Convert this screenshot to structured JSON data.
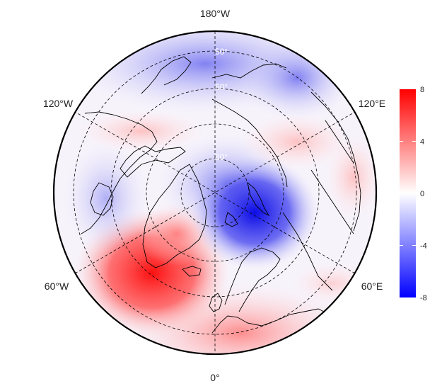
{
  "map": {
    "projection": "north-polar-stereographic",
    "longitude_labels": {
      "top": "180°W",
      "bottom": "0°",
      "upper_left": "120°W",
      "upper_right": "120°E",
      "lower_left": "60°W",
      "lower_right": "60°E"
    },
    "latitude_labels": [
      "50°",
      "60°",
      "80°"
    ],
    "colorbar": {
      "ticks": [
        "8",
        "4",
        "0",
        "-4",
        "-8"
      ],
      "min": -8,
      "max": 8,
      "colors": {
        "high": "#ff0000",
        "mid": "#ffffff",
        "low": "#0000ff"
      }
    },
    "anomaly_field": [
      {
        "region": "nordic-seas-barents",
        "value": -7.5
      },
      {
        "region": "central-arctic",
        "value": -4.5
      },
      {
        "region": "north-pacific-bering",
        "value": -3.5
      },
      {
        "region": "north-atlantic-greenland",
        "value": 6.5
      },
      {
        "region": "europe",
        "value": 4.0
      },
      {
        "region": "canada-alaska",
        "value": 1.5
      },
      {
        "region": "central-siberia",
        "value": 2.0
      }
    ]
  }
}
